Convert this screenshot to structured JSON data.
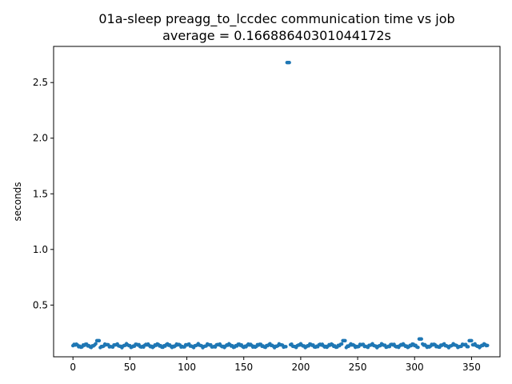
{
  "chart_data": {
    "type": "scatter",
    "title": "01a-sleep preagg_to_lccdec communication time vs job",
    "subtitle": "average = 0.16688640301044172s",
    "xlabel": "",
    "ylabel": "seconds",
    "xlim": [
      -17,
      375
    ],
    "ylim": [
      0.035,
      2.825
    ],
    "xticks": [
      0,
      50,
      100,
      150,
      200,
      250,
      300,
      350
    ],
    "yticks": [
      0.5,
      1.0,
      1.5,
      2.0,
      2.5
    ],
    "ytick_labels": [
      "0.5",
      "1.0",
      "1.5",
      "2.0",
      "2.5"
    ],
    "grid": false,
    "marker_color": "#1f77b4",
    "series": [
      {
        "baseline": 0.135,
        "n_points": 365,
        "peaks": [
          {
            "x": 21,
            "y": 0.18
          },
          {
            "x": 22,
            "y": 0.18
          },
          {
            "x": 23,
            "y": 0.18
          },
          {
            "x": 188,
            "y": 2.68
          },
          {
            "x": 189,
            "y": 2.68
          },
          {
            "x": 190,
            "y": 2.68
          },
          {
            "x": 237,
            "y": 0.18
          },
          {
            "x": 238,
            "y": 0.18
          },
          {
            "x": 239,
            "y": 0.18
          },
          {
            "x": 304,
            "y": 0.195
          },
          {
            "x": 305,
            "y": 0.195
          },
          {
            "x": 306,
            "y": 0.195
          },
          {
            "x": 348,
            "y": 0.18
          },
          {
            "x": 349,
            "y": 0.18
          },
          {
            "x": 350,
            "y": 0.18
          }
        ]
      }
    ]
  }
}
